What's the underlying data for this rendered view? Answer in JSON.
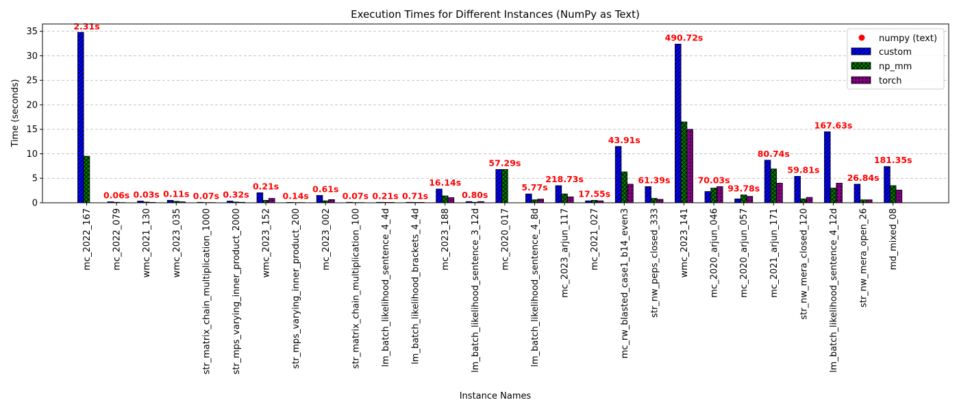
{
  "chart_data": {
    "type": "bar",
    "title": "Execution Times for Different Instances (NumPy as Text)",
    "xlabel": "Instance Names",
    "ylabel": "Time (seconds)",
    "ylim": [
      0,
      36.5
    ],
    "yticks": [
      0,
      5,
      10,
      15,
      20,
      25,
      30,
      35
    ],
    "grid": "y-dashed",
    "legend_position": "top-right",
    "categories": [
      "mc_2022_167",
      "mc_2022_079",
      "wmc_2021_130",
      "wmc_2023_035",
      "str_matrix_chain_multiplication_1000",
      "str_mps_varying_inner_product_2000",
      "wmc_2023_152",
      "str_mps_varying_inner_product_200",
      "mc_2023_002",
      "str_matrix_chain_multiplication_100",
      "lm_batch_likelihood_sentence_4_4d",
      "lm_batch_likelihood_brackets_4_4d",
      "mc_2023_188",
      "lm_batch_likelihood_sentence_3_12d",
      "mc_2020_017",
      "lm_batch_likelihood_sentence_4_8d",
      "mc_2023_arjun_117",
      "mc_2021_027",
      "mc_rw_blasted_case1_b14_even3",
      "str_nw_peps_closed_333",
      "wmc_2023_141",
      "mc_2020_arjun_046",
      "mc_2020_arjun_057",
      "mc_2021_arjun_171",
      "str_nw_mera_closed_120",
      "lm_batch_likelihood_sentence_4_12d",
      "str_nw_mera_open_26",
      "md_mixed_08"
    ],
    "series": [
      {
        "name": "custom",
        "color": "#0000ff",
        "hatch": "diagonal",
        "values": [
          34.8,
          0.2,
          0.35,
          0.5,
          0.1,
          0.35,
          2.05,
          0.08,
          1.5,
          0.1,
          0.1,
          0.1,
          2.8,
          0.25,
          6.8,
          1.8,
          3.5,
          0.4,
          11.5,
          3.3,
          32.4,
          2.3,
          0.8,
          8.7,
          5.4,
          14.5,
          3.8,
          7.4
        ]
      },
      {
        "name": "np_mm",
        "color": "#008000",
        "hatch": "cross",
        "values": [
          9.5,
          0.1,
          0.15,
          0.3,
          0.05,
          0.15,
          0.5,
          0.05,
          0.4,
          0.05,
          0.08,
          0.08,
          1.4,
          0.1,
          6.8,
          0.6,
          1.8,
          0.5,
          6.3,
          0.9,
          16.5,
          3.0,
          1.6,
          6.9,
          0.8,
          3.0,
          0.6,
          3.5
        ]
      },
      {
        "name": "torch",
        "color": "#800080",
        "hatch": "dots",
        "values": [
          0.0,
          0.05,
          0.08,
          0.2,
          0.05,
          0.1,
          0.9,
          0.05,
          0.65,
          0.05,
          0.08,
          0.08,
          1.05,
          0.25,
          0.0,
          0.75,
          1.2,
          0.4,
          3.8,
          0.7,
          15.0,
          3.3,
          1.3,
          4.0,
          1.1,
          4.0,
          0.6,
          2.6
        ]
      }
    ],
    "numpy_text_marker": {
      "name": "numpy (text)",
      "color": "#ff0000",
      "labels": [
        "2.31s",
        "0.06s",
        "0.03s",
        "0.11s",
        "0.07s",
        "0.32s",
        "0.21s",
        "0.14s",
        "0.61s",
        "0.07s",
        "0.21s",
        "0.71s",
        "16.14s",
        "0.80s",
        "57.29s",
        "5.77s",
        "218.73s",
        "17.55s",
        "43.91s",
        "61.39s",
        "490.72s",
        "70.03s",
        "93.78s",
        "80.74s",
        "59.81s",
        "167.63s",
        "26.84s",
        "181.35s"
      ]
    }
  }
}
